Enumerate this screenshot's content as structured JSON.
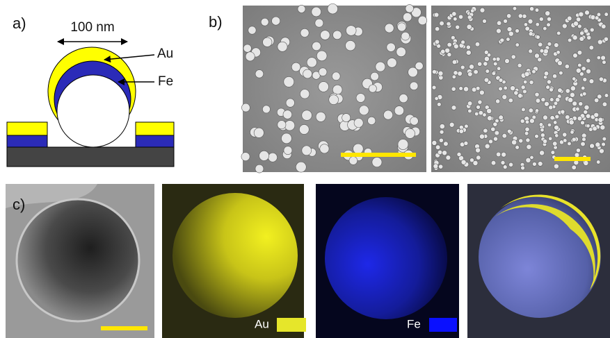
{
  "panels": {
    "a": {
      "label": "a)",
      "scale": "100 nm",
      "layers": [
        "Au",
        "Fe"
      ]
    },
    "b": {
      "label": "b)"
    },
    "c": {
      "label": "c)",
      "legend": [
        "Au",
        "Fe"
      ]
    }
  }
}
